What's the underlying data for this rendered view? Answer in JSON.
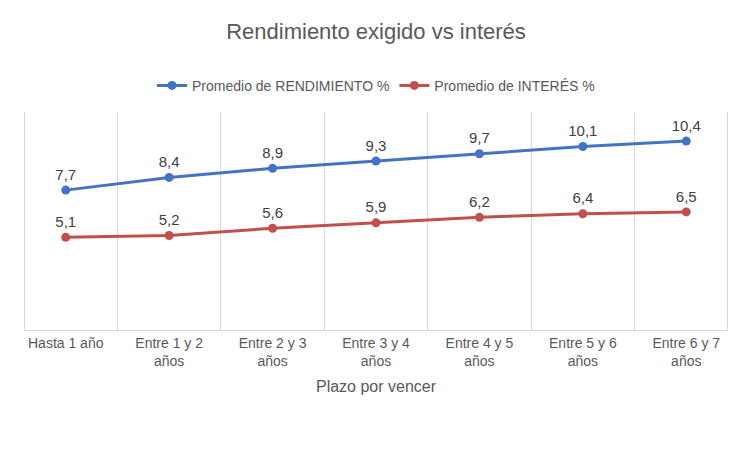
{
  "chart_data": {
    "type": "line",
    "title": "Rendimiento exigido vs interés",
    "x_label": "Plazo por vencer",
    "categories": [
      "Hasta 1 año",
      "Entre 1 y 2 años",
      "Entre 2 y 3 años",
      "Entre 3 y 4 años",
      "Entre 4 y 5 años",
      "Entre 5 y 6 años",
      "Entre 6 y 7 años"
    ],
    "series": [
      {
        "name": "Promedio de RENDIMIENTO %",
        "color": "#4472c4",
        "marker": "circle",
        "values": [
          7.7,
          8.4,
          8.9,
          9.3,
          9.7,
          10.1,
          10.4
        ],
        "value_labels": [
          "7,7",
          "8,4",
          "8,9",
          "9,3",
          "9,7",
          "10,1",
          "10,4"
        ]
      },
      {
        "name": "Promedio de INTERÉS %",
        "color": "#c0504d",
        "marker": "circle",
        "values": [
          5.1,
          5.2,
          5.6,
          5.9,
          6.2,
          6.4,
          6.5
        ],
        "value_labels": [
          "5,1",
          "5,2",
          "5,6",
          "5,9",
          "6,2",
          "6,4",
          "6,5"
        ]
      }
    ],
    "ylim": [
      0,
      12
    ],
    "grid": true,
    "legend": "top",
    "data_labels": true,
    "tick_labels": "x"
  }
}
